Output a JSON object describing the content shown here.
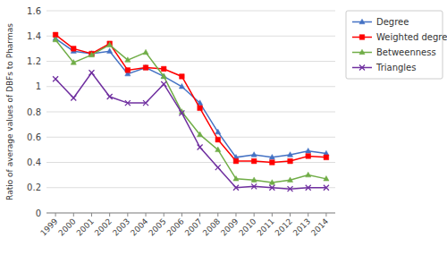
{
  "chart_data": {
    "type": "line",
    "ylabel": "Ratio of average values of DBFs to Pharmas",
    "categories": [
      "1999",
      "2000",
      "2001",
      "2002",
      "2003",
      "2004",
      "2005",
      "2006",
      "2007",
      "2008",
      "2009",
      "2010",
      "2011",
      "2012",
      "2013",
      "2014"
    ],
    "series": [
      {
        "name": "Degree",
        "color": "#4472C4",
        "marker": "triangle",
        "values": [
          1.38,
          1.28,
          1.26,
          1.28,
          1.1,
          1.15,
          1.08,
          1.0,
          0.87,
          0.64,
          0.44,
          0.46,
          0.44,
          0.46,
          0.49,
          0.47
        ]
      },
      {
        "name": "Weighted degree",
        "color": "#FF0000",
        "marker": "square",
        "values": [
          1.41,
          1.3,
          1.26,
          1.34,
          1.13,
          1.15,
          1.14,
          1.08,
          0.83,
          0.58,
          0.41,
          0.41,
          0.4,
          0.41,
          0.45,
          0.44
        ]
      },
      {
        "name": "Betweenness",
        "color": "#70AD47",
        "marker": "triangle",
        "values": [
          1.37,
          1.19,
          1.25,
          1.33,
          1.21,
          1.27,
          1.08,
          0.8,
          0.62,
          0.5,
          0.27,
          0.26,
          0.24,
          0.26,
          0.3,
          0.27
        ]
      },
      {
        "name": "Triangles",
        "color": "#7030A0",
        "marker": "x",
        "values": [
          1.06,
          0.91,
          1.11,
          0.92,
          0.87,
          0.87,
          1.02,
          0.79,
          0.52,
          0.36,
          0.2,
          0.21,
          0.2,
          0.19,
          0.2,
          0.2
        ]
      }
    ],
    "ylim": [
      0,
      1.6
    ],
    "yticks": [
      0,
      0.2,
      0.4,
      0.6,
      0.8,
      1,
      1.2,
      1.4,
      1.6
    ],
    "grid": true,
    "legend": "right"
  }
}
